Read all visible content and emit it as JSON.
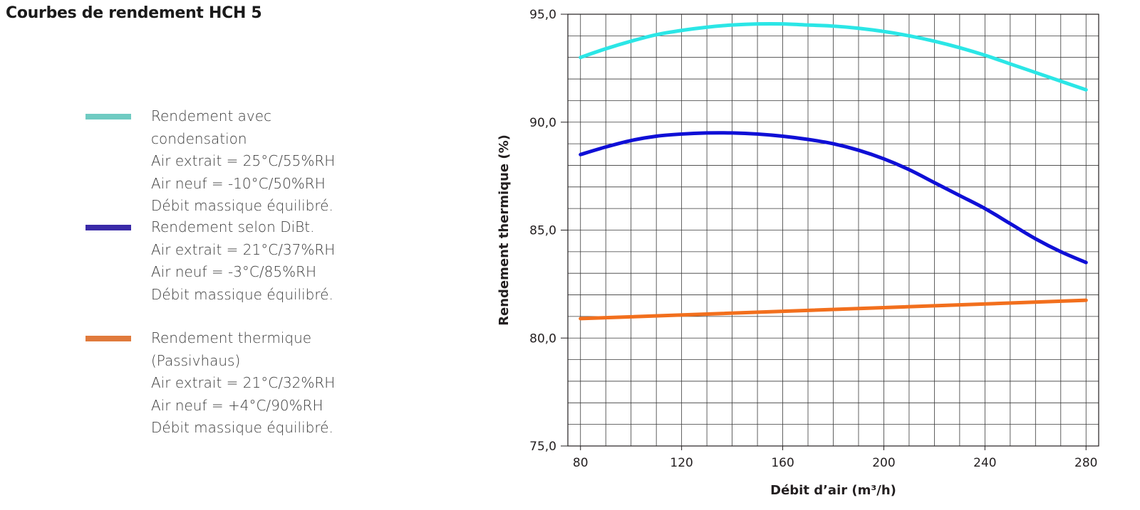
{
  "title": "Courbes de rendement HCH 5",
  "legend": [
    {
      "color": "#6fcbc2",
      "lines": [
        "Rendement avec",
        "condensation",
        "Air extrait = 25°C/55%RH",
        "Air neuf = -10°C/50%RH",
        "Débit massique équilibré."
      ]
    },
    {
      "color": "#3a2aa8",
      "lines": [
        "Rendement selon DiBt.",
        "Air extrait = 21°C/37%RH",
        "Air neuf = -3°C/85%RH",
        "Débit massique équilibré."
      ]
    },
    {
      "color": "#e07a3c",
      "lines": [
        "Rendement thermique",
        "(Passivhaus)",
        "Air extrait = 21°C/32%RH",
        "Air neuf = +4°C/90%RH",
        "Débit massique équilibré."
      ]
    }
  ],
  "chart_data": {
    "type": "line",
    "xlabel": "Débit d’air (m³/h)",
    "ylabel": "Rendement thermique (%)",
    "xlim": [
      75,
      285
    ],
    "ylim": [
      75,
      95
    ],
    "xticks": [
      "80",
      "120",
      "160",
      "200",
      "240",
      "280"
    ],
    "xtick_values": [
      80,
      120,
      160,
      200,
      240,
      280
    ],
    "yticks": [
      "75,0",
      "80,0",
      "85,0",
      "90,0",
      "95,0"
    ],
    "ytick_values": [
      75,
      80,
      85,
      90,
      95
    ],
    "grid": true,
    "series": [
      {
        "color": "#2be6e6",
        "x": [
          80,
          90,
          100,
          110,
          120,
          130,
          140,
          150,
          160,
          170,
          180,
          190,
          200,
          210,
          220,
          230,
          240,
          250,
          260,
          270,
          280
        ],
        "y": [
          93.0,
          93.4,
          93.75,
          94.05,
          94.25,
          94.4,
          94.5,
          94.55,
          94.55,
          94.5,
          94.45,
          94.35,
          94.2,
          94.0,
          93.75,
          93.45,
          93.1,
          92.7,
          92.3,
          91.9,
          91.5
        ]
      },
      {
        "color": "#0f0fd6",
        "x": [
          80,
          90,
          100,
          110,
          120,
          130,
          140,
          150,
          160,
          170,
          180,
          190,
          200,
          210,
          220,
          230,
          240,
          250,
          260,
          270,
          280
        ],
        "y": [
          88.5,
          88.85,
          89.15,
          89.35,
          89.45,
          89.5,
          89.5,
          89.45,
          89.35,
          89.2,
          89.0,
          88.7,
          88.3,
          87.8,
          87.2,
          86.6,
          86.0,
          85.3,
          84.6,
          84.0,
          83.5
        ]
      },
      {
        "color": "#f26f1d",
        "x": [
          80,
          280
        ],
        "y": [
          80.9,
          81.75
        ]
      }
    ]
  }
}
